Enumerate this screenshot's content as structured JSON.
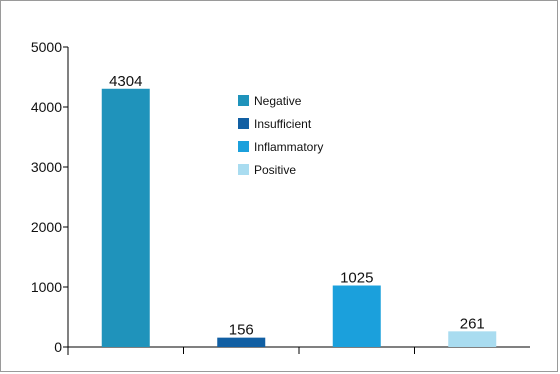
{
  "chart_data": {
    "type": "bar",
    "title": "",
    "xlabel": "",
    "ylabel": "",
    "categories": [
      "Negative",
      "Insufficient",
      "Inflammatory",
      "Positive"
    ],
    "values": [
      4304,
      156,
      1025,
      261
    ],
    "data_labels": [
      "4304",
      "156",
      "1025",
      "261"
    ],
    "colors": [
      "#1f93bb",
      "#115fa3",
      "#1ba0dc",
      "#a9dcf0"
    ],
    "ylim": [
      0,
      5000
    ],
    "yticks": [
      0,
      1000,
      2000,
      3000,
      4000,
      5000
    ],
    "ytick_labels": [
      "0",
      "1000",
      "2000",
      "3000",
      "4000",
      "5000"
    ],
    "grid": false,
    "legend": {
      "placement": "top-center",
      "entries": [
        "Negative",
        "Insufficient",
        "Inflammatory",
        "Positive"
      ]
    }
  }
}
